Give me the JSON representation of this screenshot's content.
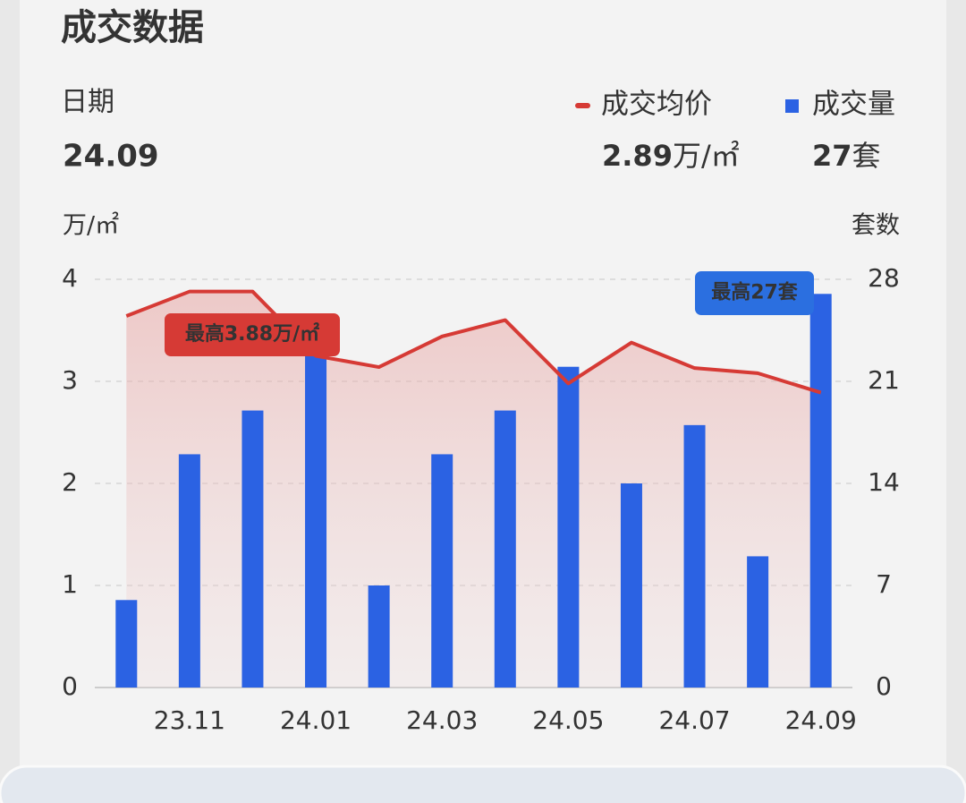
{
  "chart_data": {
    "type": "bar",
    "title": "成交数据",
    "summary": {
      "date_label": "日期",
      "date": "24.09",
      "price": "2.89",
      "price_unit": "万/㎡",
      "volume": "27",
      "volume_unit": "套"
    },
    "categories": [
      null,
      "23.11",
      null,
      "24.01",
      null,
      "24.03",
      null,
      "24.05",
      null,
      "24.07",
      null,
      "24.09"
    ],
    "series": [
      {
        "name": "成交均价",
        "type": "line",
        "color": "#d63a35",
        "values": [
          3.64,
          3.88,
          3.88,
          3.25,
          3.14,
          3.44,
          3.6,
          2.98,
          3.38,
          3.13,
          3.08,
          2.89
        ]
      },
      {
        "name": "成交量",
        "type": "bar",
        "axis": "y2",
        "color": "#2b62e3",
        "values": [
          6,
          16,
          19,
          23,
          7,
          16,
          19,
          22,
          14,
          18,
          9,
          27
        ]
      }
    ],
    "y_label": "万/㎡",
    "y2_label": "套数",
    "ylim": [
      0,
      4
    ],
    "yticks": [
      0,
      1,
      2,
      3,
      4
    ],
    "y2lim": [
      0,
      28
    ],
    "y2ticks": [
      0,
      7,
      14,
      21,
      28
    ],
    "grid": true,
    "annotations": [
      {
        "text": "最高3.88万/㎡",
        "color": "#d63a35"
      },
      {
        "text": "最高27套",
        "color": "#2b6fe0"
      }
    ]
  }
}
